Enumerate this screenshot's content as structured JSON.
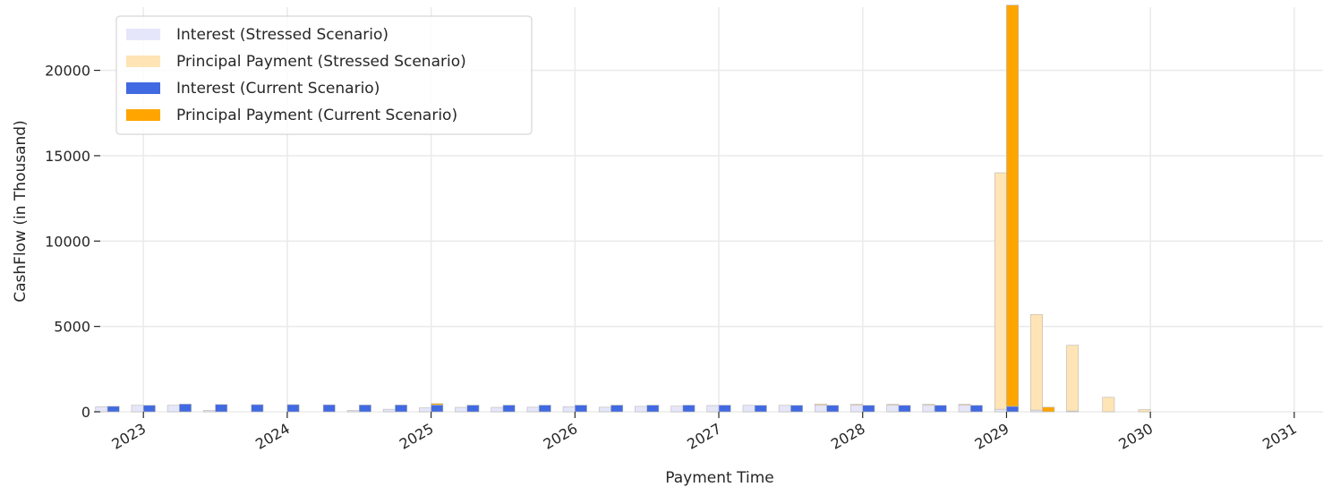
{
  "chart_data": {
    "type": "bar",
    "title": "",
    "xlabel": "Payment Time",
    "ylabel": "CashFlow (in Thousand)",
    "ylim": [
      0,
      23700
    ],
    "xlim": [
      2022.7,
      2031.2
    ],
    "yticks": [
      0,
      5000,
      10000,
      15000,
      20000
    ],
    "xticks": [
      2023,
      2024,
      2025,
      2026,
      2027,
      2028,
      2029,
      2030,
      2031
    ],
    "grid": true,
    "legend_position": "top-left",
    "colors": {
      "interest_stressed": "#e6e6fa",
      "principal_stressed": "#ffe4b5",
      "interest_current": "#4169e1",
      "principal_current": "#ffa500",
      "bar_edge": "#b8b8b8"
    },
    "x": [
      2022.75,
      2023.0,
      2023.25,
      2023.5,
      2023.75,
      2024.0,
      2024.25,
      2024.5,
      2024.75,
      2025.0,
      2025.25,
      2025.5,
      2025.75,
      2026.0,
      2026.25,
      2026.5,
      2026.75,
      2027.0,
      2027.25,
      2027.5,
      2027.75,
      2028.0,
      2028.25,
      2028.5,
      2028.75,
      2029.0,
      2029.25,
      2029.5,
      2029.75,
      2030.0
    ],
    "series": [
      {
        "name": "Interest (Stressed Scenario)",
        "color": "#e6e6fa",
        "stack": "stressed",
        "values": [
          300,
          380,
          380,
          80,
          0,
          0,
          0,
          80,
          150,
          230,
          260,
          260,
          270,
          300,
          270,
          320,
          330,
          370,
          380,
          380,
          380,
          380,
          380,
          380,
          380,
          150,
          100,
          50,
          0,
          0
        ]
      },
      {
        "name": "Principal Payment (Stressed Scenario)",
        "color": "#ffe4b5",
        "stack": "stressed",
        "values": [
          0,
          0,
          0,
          0,
          0,
          0,
          0,
          0,
          0,
          0,
          0,
          0,
          0,
          0,
          0,
          0,
          0,
          0,
          0,
          0,
          80,
          60,
          60,
          60,
          60,
          13850,
          5600,
          3850,
          850,
          130
        ]
      },
      {
        "name": "Interest (Current Scenario)",
        "color": "#4169e1",
        "stack": "current",
        "values": [
          320,
          380,
          450,
          430,
          420,
          420,
          410,
          400,
          400,
          400,
          390,
          390,
          390,
          390,
          390,
          390,
          390,
          390,
          380,
          380,
          380,
          380,
          380,
          380,
          380,
          320,
          0,
          0,
          0,
          0
        ]
      },
      {
        "name": "Principal Payment (Current Scenario)",
        "color": "#ffa500",
        "stack": "current",
        "values": [
          0,
          0,
          0,
          0,
          0,
          0,
          0,
          0,
          0,
          80,
          0,
          0,
          0,
          0,
          0,
          0,
          0,
          0,
          0,
          0,
          0,
          0,
          0,
          0,
          0,
          23500,
          270,
          0,
          0,
          0
        ]
      }
    ]
  }
}
